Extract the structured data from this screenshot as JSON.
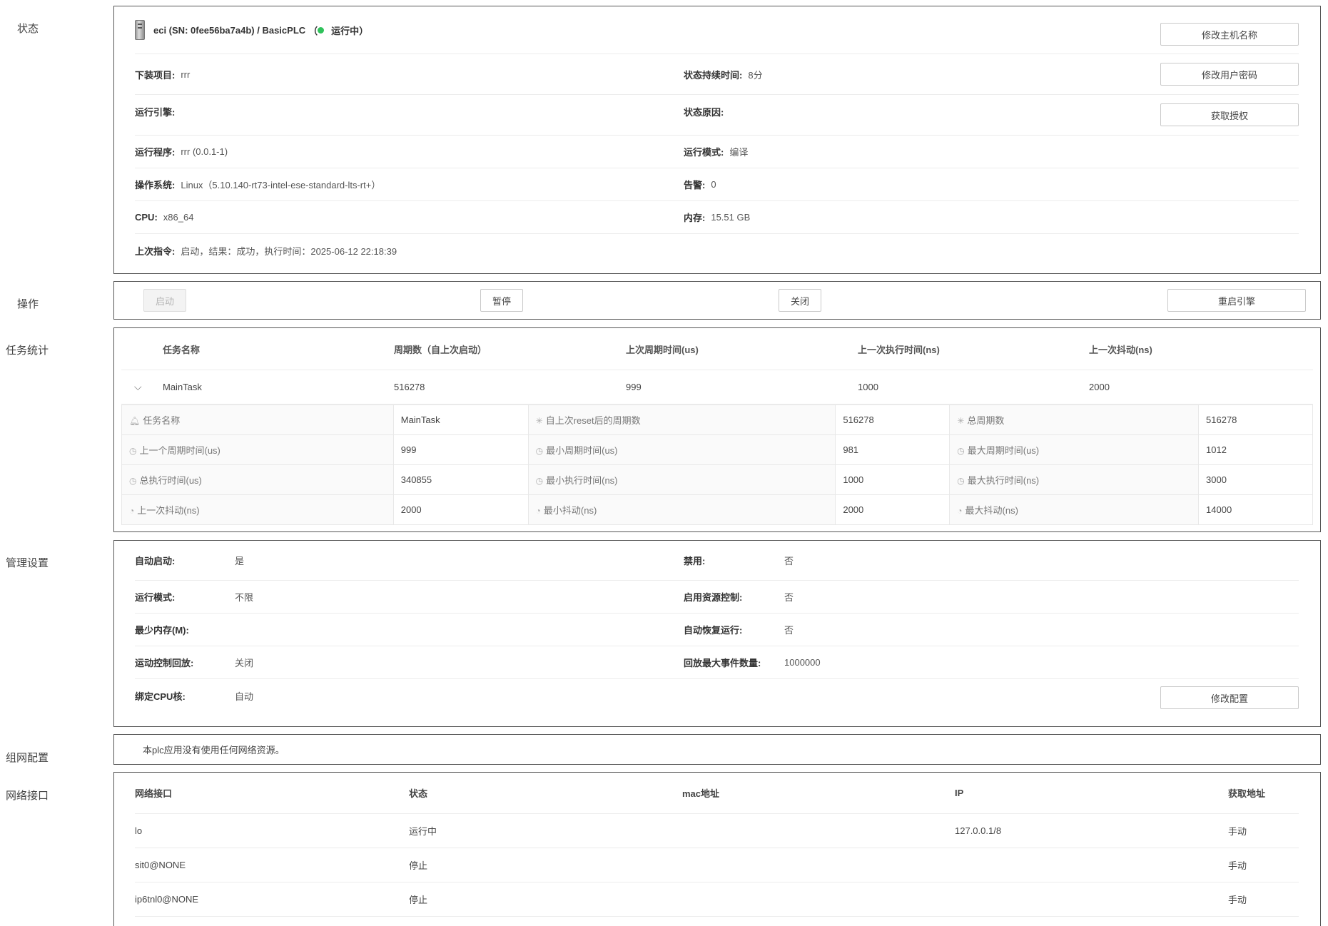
{
  "sections": {
    "status": "状态",
    "operation": "操作",
    "task_stats": "任务统计",
    "management": "管理设置",
    "network_config": "组网配置",
    "network_interfaces": "网络接口"
  },
  "status": {
    "device_title": "eci (SN: 0fee56ba7a4b) / BasicPLC",
    "paren_open": "（",
    "paren_close": "）",
    "state_text": "运行中",
    "state_color": "#2fc25b",
    "buttons": {
      "rename_host": "修改主机名称",
      "change_password": "修改用户密码",
      "get_license": "获取授权"
    },
    "fields": {
      "download_project_key": "下装项目:",
      "download_project_val": "rrr",
      "state_duration_key": "状态持续时间:",
      "state_duration_val": "8分",
      "engine_key": "运行引擎:",
      "engine_val": "",
      "state_reason_key": "状态原因:",
      "state_reason_val": "",
      "program_key": "运行程序:",
      "program_val": "rrr (0.0.1-1)",
      "run_mode_key": "运行模式:",
      "run_mode_val": "编译",
      "os_key": "操作系统:",
      "os_val": "Linux（5.10.140-rt73-intel-ese-standard-lts-rt+）",
      "alarm_key": "告警:",
      "alarm_val": "0",
      "cpu_key": "CPU:",
      "cpu_val": "x86_64",
      "memory_key": "内存:",
      "memory_val": "15.51 GB",
      "last_cmd_key": "上次指令:",
      "last_cmd_val": "启动，结果：成功，执行时间：2025-06-12 22:18:39"
    }
  },
  "operation": {
    "start": "启动",
    "pause": "暂停",
    "close": "关闭",
    "restart_engine": "重启引擎"
  },
  "task_stats": {
    "headers": [
      "任务名称",
      "周期数（自上次启动）",
      "上次周期时间(us)",
      "上一次执行时间(ns)",
      "上一次抖动(ns)"
    ],
    "row": [
      "MainTask",
      "516278",
      "999",
      "1000",
      "2000"
    ],
    "detail": [
      [
        {
          "icon": "bell-icon",
          "glyph": "🔔︎",
          "label": "任务名称",
          "value": "MainTask"
        },
        {
          "icon": "loading-icon",
          "glyph": "✳",
          "label": "自上次reset后的周期数",
          "value": "516278"
        },
        {
          "icon": "loading-icon",
          "glyph": "✳",
          "label": "总周期数",
          "value": "516278"
        }
      ],
      [
        {
          "icon": "clock-icon",
          "glyph": "◷",
          "label": "上一个周期时间(us)",
          "value": "999"
        },
        {
          "icon": "clock-icon",
          "glyph": "◷",
          "label": "最小周期时间(us)",
          "value": "981"
        },
        {
          "icon": "clock-icon",
          "glyph": "◷",
          "label": "最大周期时间(us)",
          "value": "1012"
        }
      ],
      [
        {
          "icon": "clock-icon",
          "glyph": "◷",
          "label": "总执行时间(us)",
          "value": "340855"
        },
        {
          "icon": "clock-icon",
          "glyph": "◷",
          "label": "最小执行时间(ns)",
          "value": "1000"
        },
        {
          "icon": "clock-icon",
          "glyph": "◷",
          "label": "最大执行时间(ns)",
          "value": "3000"
        }
      ],
      [
        {
          "icon": "dashboard-icon",
          "glyph": "◔",
          "label": "上一次抖动(ns)",
          "value": "2000"
        },
        {
          "icon": "dashboard-icon",
          "glyph": "◔",
          "label": "最小抖动(ns)",
          "value": "2000"
        },
        {
          "icon": "dashboard-icon",
          "glyph": "◔",
          "label": "最大抖动(ns)",
          "value": "14000"
        }
      ]
    ]
  },
  "management": {
    "auto_start_key": "自动启动:",
    "auto_start_val": "是",
    "disabled_key": "禁用:",
    "disabled_val": "否",
    "run_mode_key": "运行模式:",
    "run_mode_val": "不限",
    "resource_ctrl_key": "启用资源控制:",
    "resource_ctrl_val": "否",
    "min_mem_key": "最少内存(M):",
    "min_mem_val": "",
    "auto_recover_key": "自动恢复运行:",
    "auto_recover_val": "否",
    "motion_playback_key": "运动控制回放:",
    "motion_playback_val": "关闭",
    "playback_max_key": "回放最大事件数量:",
    "playback_max_val": "1000000",
    "bind_cpu_key": "绑定CPU核:",
    "bind_cpu_val": "自动",
    "modify_config": "修改配置"
  },
  "network_config": {
    "message": "本plc应用没有使用任何网络资源。"
  },
  "network_interfaces": {
    "headers": [
      "网络接口",
      "状态",
      "mac地址",
      "IP",
      "获取地址"
    ],
    "rows": [
      [
        "lo",
        "运行中",
        "",
        "127.0.0.1/8",
        "手动"
      ],
      [
        "sit0@NONE",
        "停止",
        "",
        "",
        "手动"
      ],
      [
        "ip6tnl0@NONE",
        "停止",
        "",
        "",
        "手动"
      ]
    ]
  }
}
